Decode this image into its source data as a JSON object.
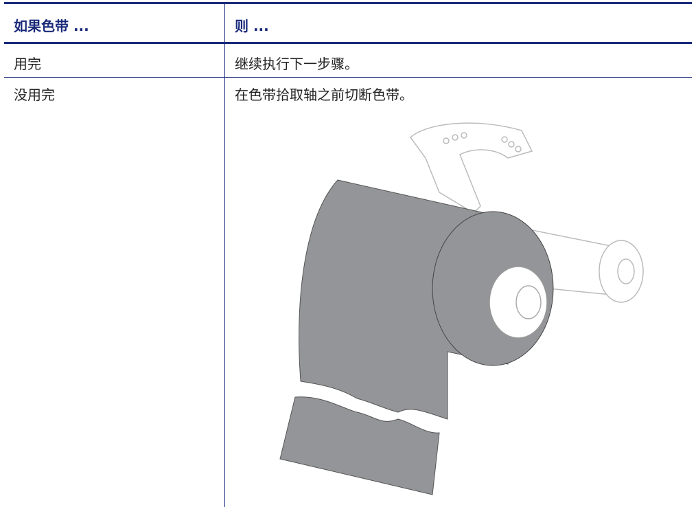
{
  "table": {
    "header": [
      "如果色带 ...",
      "则 ..."
    ],
    "rows": [
      [
        "用完",
        "继续执行下一步骤。"
      ],
      [
        "没用完",
        "在色带拾取轴之前切断色带。"
      ]
    ]
  }
}
